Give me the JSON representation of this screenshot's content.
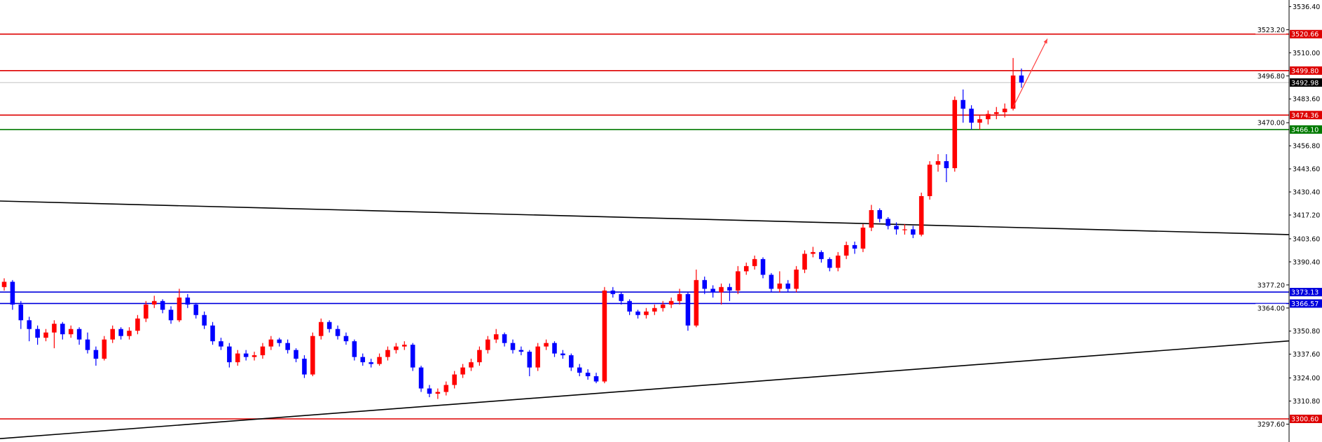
{
  "chart_data": {
    "type": "candlestick",
    "title": "",
    "ylim": [
      3297.6,
      3536.4
    ],
    "y_ticks": [
      "3536.40",
      "3523.20",
      "3510.00",
      "3496.80",
      "3483.60",
      "3470.00",
      "3456.80",
      "3443.60",
      "3430.40",
      "3417.20",
      "3403.60",
      "3390.40",
      "3377.20",
      "3364.00",
      "3350.80",
      "3337.60",
      "3324.00",
      "3310.80",
      "3297.60"
    ],
    "colors": {
      "bullish": "#ff0000",
      "bearish": "#0000ff",
      "background": "#ffffff",
      "axis": "#000000"
    },
    "ohlc": [
      [
        3376,
        3381,
        3374,
        3379
      ],
      [
        3379,
        3380,
        3363,
        3366
      ],
      [
        3366,
        3368,
        3352,
        3357
      ],
      [
        3357,
        3359,
        3345,
        3352
      ],
      [
        3352,
        3354,
        3343,
        3347
      ],
      [
        3347,
        3352,
        3345,
        3350
      ],
      [
        3350,
        3357,
        3341,
        3355
      ],
      [
        3355,
        3356,
        3346,
        3349
      ],
      [
        3349,
        3354,
        3347,
        3352
      ],
      [
        3352,
        3353,
        3343,
        3346
      ],
      [
        3346,
        3350,
        3338,
        3340
      ],
      [
        3340,
        3342,
        3331,
        3335
      ],
      [
        3335,
        3348,
        3334,
        3346
      ],
      [
        3346,
        3354,
        3344,
        3352
      ],
      [
        3352,
        3353,
        3346,
        3348
      ],
      [
        3348,
        3353,
        3346,
        3351
      ],
      [
        3351,
        3360,
        3349,
        3358
      ],
      [
        3358,
        3368,
        3356,
        3366
      ],
      [
        3366,
        3371,
        3364,
        3368
      ],
      [
        3368,
        3369,
        3361,
        3363
      ],
      [
        3363,
        3365,
        3355,
        3357
      ],
      [
        3357,
        3375,
        3356,
        3370
      ],
      [
        3370,
        3372,
        3364,
        3366
      ],
      [
        3366,
        3367,
        3358,
        3360
      ],
      [
        3360,
        3362,
        3352,
        3354
      ],
      [
        3354,
        3356,
        3343,
        3345
      ],
      [
        3345,
        3347,
        3340,
        3342
      ],
      [
        3342,
        3344,
        3330,
        3333
      ],
      [
        3333,
        3340,
        3331,
        3338
      ],
      [
        3338,
        3340,
        3334,
        3336
      ],
      [
        3336,
        3339,
        3334,
        3337
      ],
      [
        3337,
        3344,
        3335,
        3342
      ],
      [
        3342,
        3348,
        3340,
        3346
      ],
      [
        3346,
        3347,
        3342,
        3344
      ],
      [
        3344,
        3346,
        3338,
        3340
      ],
      [
        3340,
        3341,
        3333,
        3335
      ],
      [
        3335,
        3337,
        3324,
        3326
      ],
      [
        3326,
        3350,
        3325,
        3348
      ],
      [
        3348,
        3358,
        3346,
        3356
      ],
      [
        3356,
        3357,
        3350,
        3352
      ],
      [
        3352,
        3354,
        3346,
        3348
      ],
      [
        3348,
        3350,
        3343,
        3345
      ],
      [
        3345,
        3346,
        3334,
        3336
      ],
      [
        3336,
        3338,
        3331,
        3333
      ],
      [
        3333,
        3335,
        3330,
        3332
      ],
      [
        3332,
        3338,
        3331,
        3336
      ],
      [
        3336,
        3342,
        3334,
        3340
      ],
      [
        3340,
        3344,
        3338,
        3342
      ],
      [
        3342,
        3345,
        3340,
        3343
      ],
      [
        3343,
        3344,
        3328,
        3330
      ],
      [
        3330,
        3331,
        3316,
        3318
      ],
      [
        3318,
        3320,
        3313,
        3315
      ],
      [
        3315,
        3318,
        3312,
        3316
      ],
      [
        3316,
        3322,
        3314,
        3320
      ],
      [
        3320,
        3328,
        3318,
        3326
      ],
      [
        3326,
        3332,
        3324,
        3330
      ],
      [
        3330,
        3335,
        3328,
        3333
      ],
      [
        3333,
        3342,
        3331,
        3340
      ],
      [
        3340,
        3348,
        3338,
        3346
      ],
      [
        3346,
        3352,
        3344,
        3349
      ],
      [
        3349,
        3350,
        3342,
        3344
      ],
      [
        3344,
        3346,
        3338,
        3340
      ],
      [
        3340,
        3342,
        3337,
        3339
      ],
      [
        3339,
        3340,
        3325,
        3330
      ],
      [
        3330,
        3344,
        3328,
        3342
      ],
      [
        3342,
        3346,
        3340,
        3344
      ],
      [
        3344,
        3345,
        3336,
        3338
      ],
      [
        3338,
        3340,
        3335,
        3337
      ],
      [
        3337,
        3338,
        3328,
        3330
      ],
      [
        3330,
        3332,
        3325,
        3327
      ],
      [
        3327,
        3329,
        3323,
        3325
      ],
      [
        3325,
        3327,
        3321,
        3322
      ],
      [
        3322,
        3376,
        3321,
        3374
      ],
      [
        3374,
        3376,
        3370,
        3372
      ],
      [
        3372,
        3373,
        3366,
        3368
      ],
      [
        3368,
        3369,
        3360,
        3362
      ],
      [
        3362,
        3363,
        3358,
        3360
      ],
      [
        3360,
        3364,
        3358,
        3362
      ],
      [
        3362,
        3366,
        3360,
        3364
      ],
      [
        3364,
        3368,
        3362,
        3366
      ],
      [
        3366,
        3370,
        3364,
        3368
      ],
      [
        3368,
        3375,
        3366,
        3372
      ],
      [
        3372,
        3373,
        3351,
        3354
      ],
      [
        3354,
        3386,
        3353,
        3380
      ],
      [
        3380,
        3382,
        3372,
        3375
      ],
      [
        3375,
        3377,
        3370,
        3373
      ],
      [
        3373,
        3378,
        3366,
        3376
      ],
      [
        3376,
        3378,
        3368,
        3374
      ],
      [
        3374,
        3388,
        3372,
        3385
      ],
      [
        3385,
        3390,
        3383,
        3388
      ],
      [
        3388,
        3394,
        3386,
        3392
      ],
      [
        3392,
        3393,
        3381,
        3383
      ],
      [
        3383,
        3384,
        3373,
        3375
      ],
      [
        3375,
        3385,
        3373,
        3378
      ],
      [
        3378,
        3380,
        3373,
        3375
      ],
      [
        3375,
        3388,
        3373,
        3386
      ],
      [
        3386,
        3397,
        3384,
        3395
      ],
      [
        3395,
        3399,
        3393,
        3396
      ],
      [
        3396,
        3397,
        3390,
        3392
      ],
      [
        3392,
        3393,
        3385,
        3387
      ],
      [
        3387,
        3396,
        3385,
        3394
      ],
      [
        3394,
        3402,
        3392,
        3400
      ],
      [
        3400,
        3402,
        3395,
        3398
      ],
      [
        3398,
        3412,
        3396,
        3410
      ],
      [
        3410,
        3423,
        3408,
        3420
      ],
      [
        3420,
        3421,
        3413,
        3415
      ],
      [
        3415,
        3416,
        3409,
        3411
      ],
      [
        3411,
        3413,
        3406,
        3409
      ],
      [
        3409,
        3412,
        3406,
        3409
      ],
      [
        3409,
        3411,
        3404,
        3406
      ],
      [
        3406,
        3430,
        3405,
        3428
      ],
      [
        3428,
        3448,
        3426,
        3446
      ],
      [
        3446,
        3452,
        3442,
        3448
      ],
      [
        3448,
        3452,
        3436,
        3444
      ],
      [
        3444,
        3485,
        3442,
        3483
      ],
      [
        3483,
        3489,
        3470,
        3478
      ],
      [
        3478,
        3480,
        3466,
        3470
      ],
      [
        3470,
        3474,
        3466,
        3472
      ],
      [
        3472,
        3477,
        3469,
        3475
      ],
      [
        3475,
        3479,
        3472,
        3476
      ],
      [
        3476,
        3481,
        3473,
        3478
      ],
      [
        3478,
        3507,
        3477,
        3497
      ],
      [
        3497,
        3501,
        3490,
        3492.98
      ]
    ],
    "horizontal_lines": [
      {
        "price": 3520.66,
        "label": "3520.66",
        "color": "#dd0000"
      },
      {
        "price": 3499.8,
        "label": "3499.80",
        "color": "#dd0000"
      },
      {
        "price": 3492.98,
        "label": "3492.98",
        "color": "#c0c0c0",
        "tag_color": "#000000"
      },
      {
        "price": 3474.36,
        "label": "3474.36",
        "color": "#dd0000"
      },
      {
        "price": 3466.1,
        "label": "3466.10",
        "color": "#007a00"
      },
      {
        "price": 3373.13,
        "label": "3373.13",
        "color": "#0000dd"
      },
      {
        "price": 3366.57,
        "label": "3366.57",
        "color": "#0000dd"
      },
      {
        "price": 3300.6,
        "label": "3300.60",
        "color": "#dd0000"
      }
    ],
    "trendlines": [
      {
        "start_price": 3425.2,
        "end_price": 3406.0,
        "color": "#000000"
      },
      {
        "start_price": 3289.3,
        "end_price": 3345.2,
        "color": "#000000"
      }
    ],
    "projection_arrow": {
      "from_price": 3479,
      "to_price": 3518,
      "color": "#ff4040"
    }
  }
}
